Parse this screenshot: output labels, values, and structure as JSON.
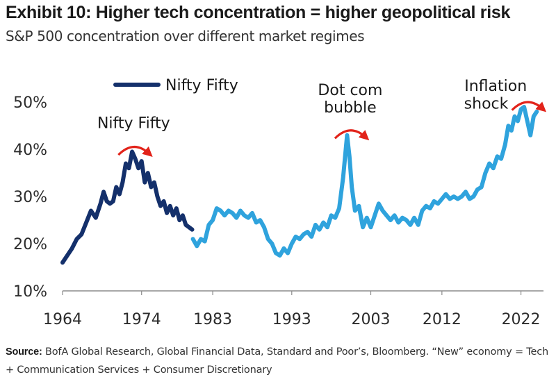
{
  "header": {
    "title": "Exhibit 10: Higher tech concentration = higher geopolitical risk",
    "subtitle": "S&P 500 concentration over different market regimes"
  },
  "footer": {
    "source_label": "Source:",
    "source_text": "BofA Global Research, Global Financial Data, Standard and Poor’s, Bloomberg. “New” economy = Tech + Communication Services + Consumer Discretionary"
  },
  "colors": {
    "nifty_series": "#14306b",
    "modern_series": "#2fa3dd",
    "arrow": "#e2231a"
  },
  "chart_data": {
    "type": "line",
    "title": "S&P 500 concentration over different market regimes",
    "xlabel": "",
    "ylabel": "",
    "xlim": [
      1964,
      2024.5
    ],
    "ylim": [
      10,
      54
    ],
    "x_ticks": [
      {
        "value": 1964,
        "label": "1964"
      },
      {
        "value": 1974,
        "label": "1974"
      },
      {
        "value": 1983,
        "label": "1983"
      },
      {
        "value": 1993,
        "label": "1993"
      },
      {
        "value": 2003,
        "label": "2003"
      },
      {
        "value": 2012,
        "label": "2012"
      },
      {
        "value": 2022,
        "label": "2022"
      }
    ],
    "y_ticks": [
      {
        "value": 10,
        "label": "10%"
      },
      {
        "value": 20,
        "label": "20%"
      },
      {
        "value": 30,
        "label": "30%"
      },
      {
        "value": 40,
        "label": "40%"
      },
      {
        "value": 50,
        "label": "50%"
      }
    ],
    "legend": {
      "label": "Nifty Fifty",
      "placement": "top-left"
    },
    "series": [
      {
        "name": "Nifty Fifty",
        "color": "#14306b",
        "x": [
          1964,
          1964.6,
          1965.2,
          1965.8,
          1966.4,
          1967,
          1967.6,
          1968.2,
          1968.8,
          1969.2,
          1969.6,
          1970,
          1970.4,
          1970.8,
          1971.2,
          1971.6,
          1972,
          1972.4,
          1972.8,
          1973.2,
          1973.6,
          1974,
          1974.4,
          1974.8,
          1975.2,
          1975.6,
          1976,
          1976.4,
          1976.8,
          1977.2,
          1977.6,
          1978,
          1978.4,
          1978.8,
          1979.2,
          1979.6,
          1980,
          1980.4
        ],
        "y": [
          16,
          17.5,
          19,
          21,
          22,
          24.5,
          27,
          25.5,
          28.5,
          31,
          29,
          28.5,
          29,
          32,
          30.5,
          33,
          37,
          36,
          39.5,
          38,
          36,
          37.5,
          33,
          35,
          32,
          33,
          30,
          28,
          29,
          26.5,
          28,
          26,
          27.5,
          25,
          26,
          24,
          23.5,
          23
        ]
      },
      {
        "name": "S&P 500 concentration",
        "color": "#2fa3dd",
        "x": [
          1980.5,
          1981,
          1981.5,
          1982,
          1982.5,
          1983,
          1983.5,
          1984,
          1984.5,
          1985,
          1985.5,
          1986,
          1986.5,
          1987,
          1987.5,
          1988,
          1988.5,
          1989,
          1989.5,
          1990,
          1990.5,
          1991,
          1991.5,
          1992,
          1992.5,
          1993,
          1993.5,
          1994,
          1994.5,
          1995,
          1995.5,
          1996,
          1996.5,
          1997,
          1997.5,
          1998,
          1998.5,
          1999,
          1999.5,
          2000,
          2000.3,
          2000.6,
          2001,
          2001.5,
          2002,
          2002.5,
          2003,
          2003.5,
          2004,
          2004.5,
          2005,
          2005.5,
          2006,
          2006.5,
          2007,
          2007.5,
          2008,
          2008.5,
          2009,
          2009.5,
          2010,
          2010.5,
          2011,
          2011.5,
          2012,
          2012.5,
          2013,
          2013.5,
          2014,
          2014.5,
          2015,
          2015.5,
          2016,
          2016.5,
          2017,
          2017.5,
          2018,
          2018.5,
          2019,
          2019.5,
          2020,
          2020.4,
          2020.8,
          2021.2,
          2021.6,
          2022,
          2022.4,
          2022.8,
          2023.2,
          2023.6,
          2024
        ],
        "y": [
          21,
          19.5,
          21,
          20.5,
          24,
          25,
          27.5,
          27,
          26,
          27,
          26.5,
          25.5,
          27,
          26,
          25.5,
          26.5,
          24.5,
          25,
          23.5,
          21,
          20,
          18,
          17.5,
          19,
          18,
          20,
          21.5,
          21,
          22,
          22.5,
          21.5,
          24,
          23,
          24.5,
          23.5,
          26,
          25.5,
          27.5,
          34,
          43,
          38.5,
          32,
          27,
          28,
          23.5,
          25.5,
          23.5,
          26,
          28.5,
          27,
          26,
          25,
          26,
          24.5,
          25.5,
          25,
          24,
          25.5,
          24,
          27,
          28,
          27.5,
          29,
          28.5,
          29.5,
          30.5,
          29.5,
          30,
          29.5,
          30,
          31,
          29.5,
          30,
          31.5,
          32,
          35,
          37,
          36,
          38.5,
          38,
          41,
          45,
          44,
          47,
          46,
          48.5,
          49,
          46,
          43,
          47,
          48
        ]
      }
    ],
    "annotations": [
      {
        "text": "Nifty Fifty",
        "x": 1973,
        "y": 44.5,
        "arrow_at": [
          1973,
          40
        ]
      },
      {
        "text": "Dot com",
        "x": 2000.4,
        "y": 51.5,
        "arrow_at": [
          2000.4,
          43.5
        ]
      },
      {
        "text": "bubble",
        "x": 2000.4,
        "y": 47.8,
        "arrow_at": [
          2000.4,
          43.5
        ]
      },
      {
        "text": "Inflation",
        "x": 2018.8,
        "y": 52.4,
        "arrow_at": [
          2022.8,
          49.5
        ]
      },
      {
        "text": "shock",
        "x": 2017.6,
        "y": 48.6,
        "arrow_at": [
          2022.8,
          49.5
        ]
      }
    ]
  }
}
